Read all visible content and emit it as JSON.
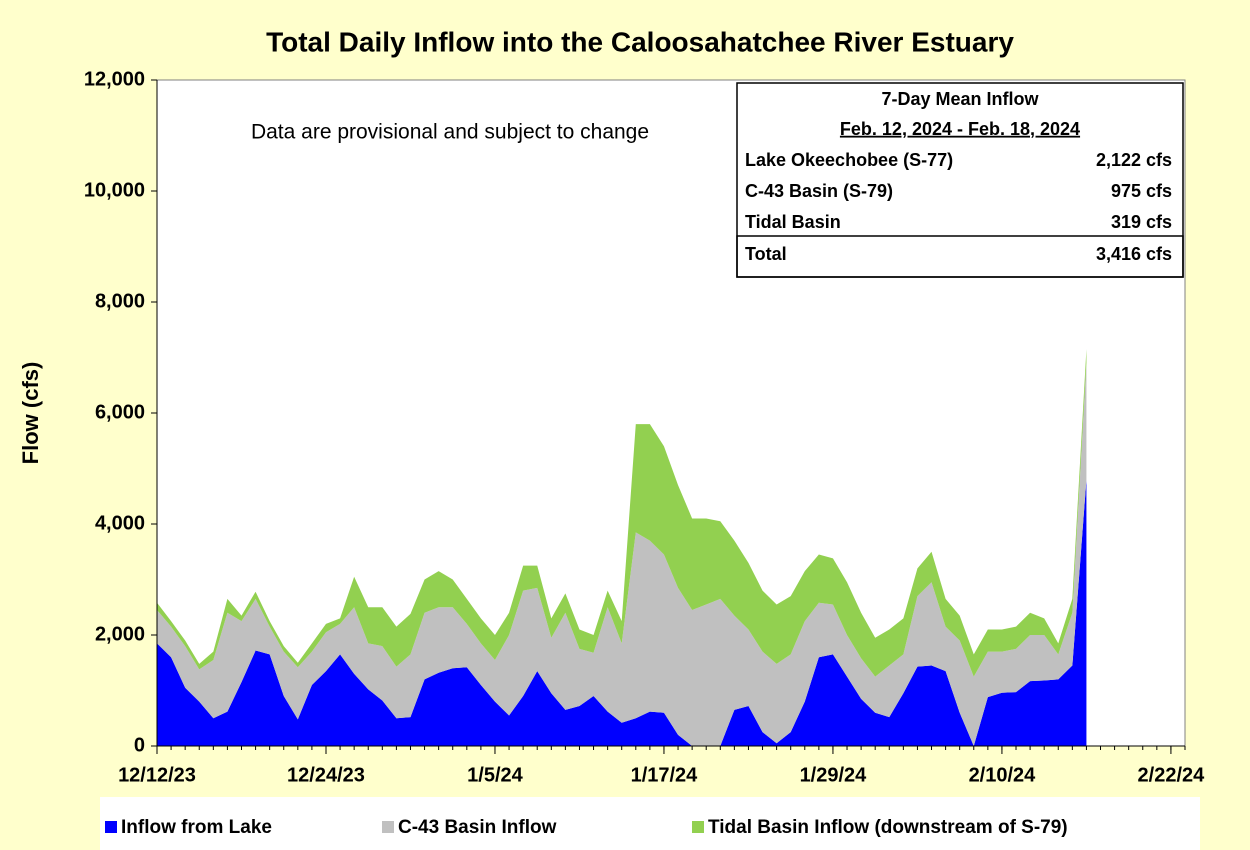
{
  "chart_data": {
    "type": "stacked_area",
    "title": "Total Daily Inflow into the Caloosahatchee River Estuary",
    "y_label": "Flow (cfs)",
    "annotation": "Data are provisional and subject to change",
    "x": [
      "12/12/23",
      "12/13/23",
      "12/14/23",
      "12/15/23",
      "12/16/23",
      "12/17/23",
      "12/18/23",
      "12/19/23",
      "12/20/23",
      "12/21/23",
      "12/22/23",
      "12/23/23",
      "12/24/23",
      "12/25/23",
      "12/26/23",
      "12/27/23",
      "12/28/23",
      "12/29/23",
      "12/30/23",
      "12/31/23",
      "1/1/24",
      "1/2/24",
      "1/3/24",
      "1/4/24",
      "1/5/24",
      "1/6/24",
      "1/7/24",
      "1/8/24",
      "1/9/24",
      "1/10/24",
      "1/11/24",
      "1/12/24",
      "1/13/24",
      "1/14/24",
      "1/15/24",
      "1/16/24",
      "1/17/24",
      "1/18/24",
      "1/19/24",
      "1/20/24",
      "1/21/24",
      "1/22/24",
      "1/23/24",
      "1/24/24",
      "1/25/24",
      "1/26/24",
      "1/27/24",
      "1/28/24",
      "1/29/24",
      "1/30/24",
      "1/31/24",
      "2/1/24",
      "2/2/24",
      "2/3/24",
      "2/4/24",
      "2/5/24",
      "2/6/24",
      "2/7/24",
      "2/8/24",
      "2/9/24",
      "2/10/24",
      "2/11/24",
      "2/12/24",
      "2/13/24",
      "2/14/24",
      "2/15/24",
      "2/16/24"
    ],
    "series": [
      {
        "name": "Inflow from Lake",
        "color": "#0000ff",
        "values": [
          1850,
          1600,
          1050,
          800,
          500,
          620,
          1150,
          1720,
          1650,
          900,
          480,
          1100,
          1350,
          1650,
          1300,
          1020,
          820,
          500,
          520,
          1200,
          1320,
          1400,
          1420,
          1100,
          800,
          550,
          900,
          1350,
          950,
          650,
          720,
          900,
          620,
          420,
          500,
          620,
          600,
          200,
          0,
          0,
          0,
          650,
          720,
          250,
          50,
          250,
          800,
          1600,
          1650,
          1250,
          850,
          600,
          520,
          950,
          1430,
          1450,
          1350,
          600,
          0,
          880,
          960,
          970,
          1170,
          1180,
          1200,
          1450,
          4800
        ]
      },
      {
        "name": "C-43 Basin Inflow",
        "color": "#c0c0c0",
        "values": [
          600,
          550,
          750,
          580,
          1050,
          1780,
          1100,
          930,
          500,
          800,
          940,
          600,
          700,
          550,
          1200,
          830,
          980,
          930,
          1130,
          1200,
          1180,
          1100,
          780,
          750,
          750,
          1450,
          1900,
          1500,
          1000,
          1750,
          1030,
          780,
          1880,
          1430,
          3350,
          3080,
          2850,
          2650,
          2450,
          2550,
          2650,
          1700,
          1380,
          1450,
          1430,
          1400,
          1450,
          980,
          900,
          750,
          730,
          650,
          930,
          700,
          1270,
          1500,
          800,
          1300,
          1250,
          820,
          740,
          780,
          830,
          820,
          450,
          950,
          2100
        ]
      },
      {
        "name": "Tidal Basin Inflow (downstream of S-79)",
        "color": "#92d050",
        "values": [
          130,
          100,
          100,
          100,
          150,
          250,
          100,
          130,
          100,
          100,
          80,
          150,
          150,
          100,
          550,
          650,
          700,
          720,
          730,
          600,
          650,
          500,
          450,
          450,
          450,
          400,
          450,
          400,
          350,
          350,
          350,
          320,
          300,
          400,
          1950,
          2100,
          1950,
          1850,
          1650,
          1550,
          1400,
          1350,
          1200,
          1100,
          1070,
          1050,
          900,
          870,
          830,
          950,
          820,
          700,
          650,
          650,
          500,
          550,
          500,
          450,
          400,
          400,
          400,
          400,
          400,
          300,
          200,
          250,
          250
        ]
      }
    ],
    "xlim": [
      "12/12/23",
      "2/23/24"
    ],
    "xticks": [
      "12/12/23",
      "12/24/23",
      "1/5/24",
      "1/17/24",
      "1/29/24",
      "2/10/24",
      "2/22/24"
    ],
    "ylim": [
      0,
      12000
    ],
    "yticks": [
      0,
      {
        "value": 2000,
        "label": "2,000"
      },
      {
        "value": 4000,
        "label": "4,000"
      },
      {
        "value": 6000,
        "label": "6,000"
      },
      {
        "value": 8000,
        "label": "8,000"
      },
      {
        "value": 10000,
        "label": "10,000"
      },
      {
        "value": 12000,
        "label": "12,000"
      }
    ],
    "grid": false,
    "legend": "bottom",
    "table": {
      "title": "7-Day Mean Inflow",
      "subtitle": "Feb. 12, 2024 - Feb. 18, 2024",
      "rows": [
        [
          "Lake Okeechobee (S-77)",
          "2,122 cfs"
        ],
        [
          "C-43 Basin (S-79)",
          "975 cfs"
        ],
        [
          "Tidal Basin",
          "319 cfs"
        ]
      ],
      "total": [
        "Total",
        "3,416 cfs"
      ]
    }
  }
}
